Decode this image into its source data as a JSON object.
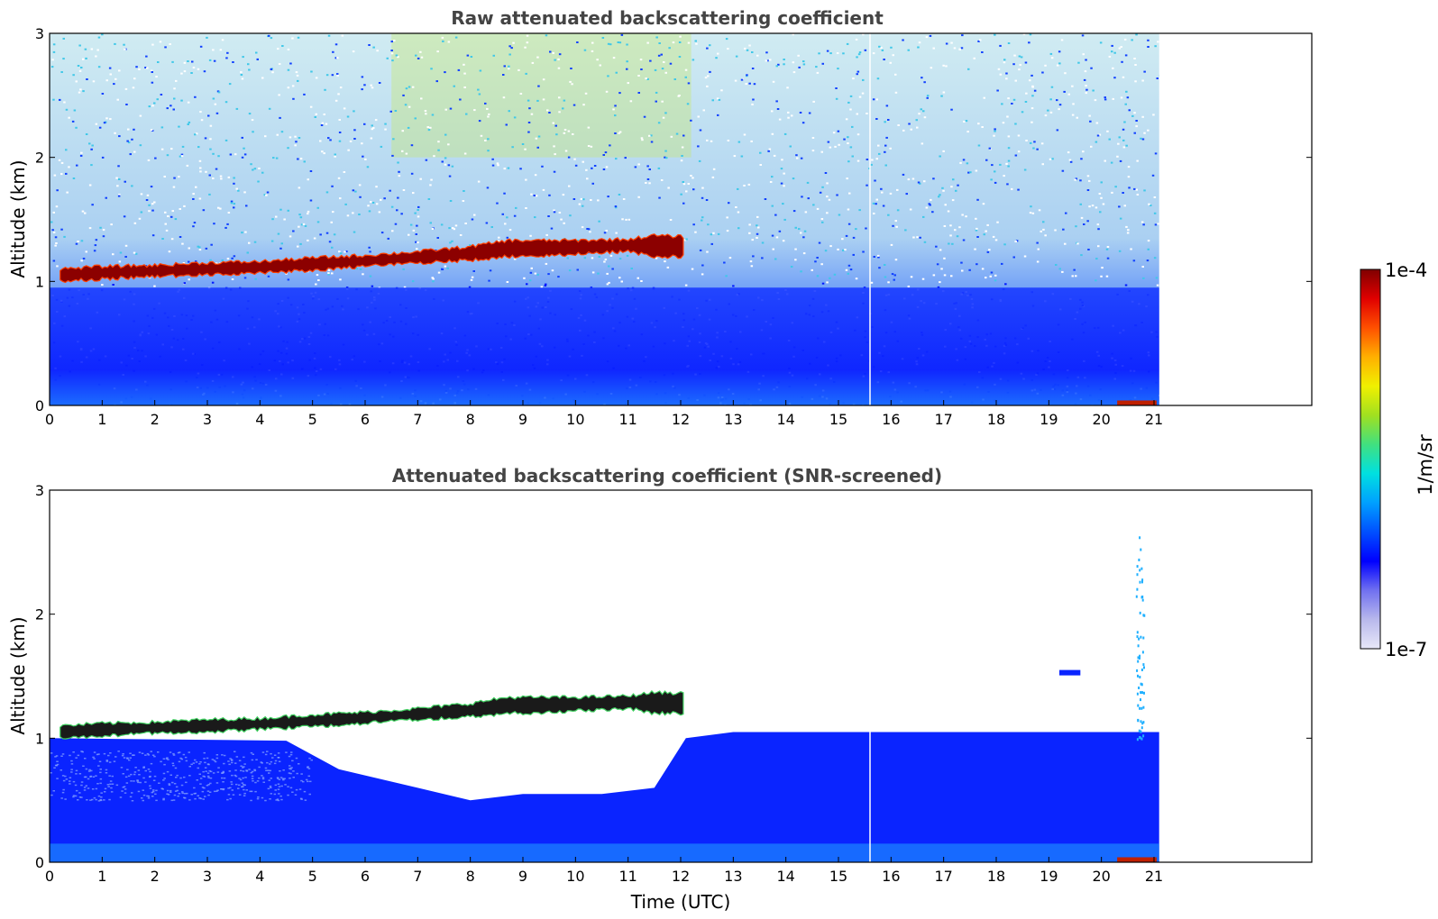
{
  "chart_data": [
    {
      "type": "heatmap",
      "title": "Raw attenuated backscattering coefficient",
      "xlabel": "",
      "ylabel": "Altitude (km)",
      "xlim": [
        0,
        24
      ],
      "ylim": [
        0,
        3
      ],
      "x_ticks": [
        "0",
        "1",
        "2",
        "3",
        "4",
        "5",
        "6",
        "7",
        "8",
        "9",
        "10",
        "11",
        "12",
        "13",
        "14",
        "15",
        "16",
        "17",
        "18",
        "19",
        "20",
        "21"
      ],
      "y_ticks": [
        "0",
        "1",
        "2",
        "3"
      ],
      "data_end_hour": 21.1,
      "cloud_layer": {
        "hours": [
          0.2,
          1,
          2,
          3,
          4,
          5,
          6,
          7,
          8,
          8.7,
          9,
          10,
          11,
          11.5,
          12.1
        ],
        "base_km": [
          1.0,
          1.02,
          1.04,
          1.05,
          1.07,
          1.09,
          1.12,
          1.15,
          1.17,
          1.2,
          1.2,
          1.22,
          1.24,
          1.2,
          1.2
        ],
        "top_km": [
          1.1,
          1.12,
          1.13,
          1.15,
          1.16,
          1.19,
          1.21,
          1.24,
          1.28,
          1.33,
          1.33,
          1.33,
          1.34,
          1.37,
          1.36
        ]
      },
      "missing_data_hour": 15.6
    },
    {
      "type": "heatmap",
      "title": "Attenuated backscattering coefficient (SNR-screened)",
      "xlabel": "Time (UTC)",
      "ylabel": "Altitude (km)",
      "xlim": [
        0,
        24
      ],
      "ylim": [
        0,
        3
      ],
      "x_ticks": [
        "0",
        "1",
        "2",
        "3",
        "4",
        "5",
        "6",
        "7",
        "8",
        "9",
        "10",
        "11",
        "12",
        "13",
        "14",
        "15",
        "16",
        "17",
        "18",
        "19",
        "20",
        "21"
      ],
      "y_ticks": [
        "0",
        "1",
        "2",
        "3"
      ],
      "data_end_hour": 21.1,
      "cloud_layer": {
        "hours": [
          0.2,
          1,
          2,
          3,
          4,
          5,
          6,
          7,
          8,
          8.7,
          9,
          10,
          11,
          11.5,
          12.1
        ],
        "base_km": [
          1.0,
          1.02,
          1.04,
          1.05,
          1.07,
          1.09,
          1.12,
          1.15,
          1.17,
          1.2,
          1.2,
          1.22,
          1.24,
          1.2,
          1.2
        ],
        "top_km": [
          1.1,
          1.12,
          1.13,
          1.15,
          1.16,
          1.19,
          1.21,
          1.24,
          1.28,
          1.33,
          1.33,
          1.33,
          1.34,
          1.37,
          1.36
        ]
      },
      "missing_data_hour": 15.6
    }
  ],
  "colorbar": {
    "label": "1/m/sr",
    "max_label": "1e-4",
    "min_label": "1e-7",
    "scale": "log",
    "range": [
      1e-07,
      0.0001
    ],
    "colormap": [
      "#e8e8f8",
      "#b8b8ec",
      "#7070f0",
      "#0000ff",
      "#0050ff",
      "#00a0ff",
      "#00e0e0",
      "#40e080",
      "#a0e020",
      "#f0f000",
      "#ffb000",
      "#ff5000",
      "#e00000",
      "#800000"
    ]
  }
}
